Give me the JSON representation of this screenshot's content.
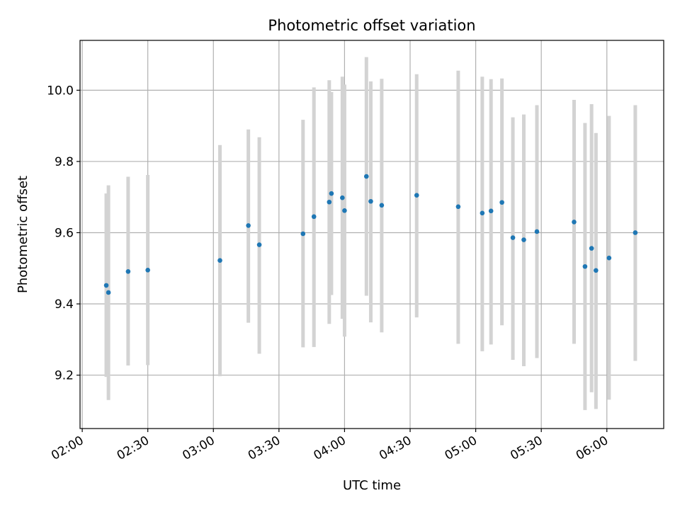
{
  "chart_data": {
    "type": "scatter",
    "title": "Photometric offset variation",
    "xlabel": "UTC time",
    "ylabel": "Photometric offset",
    "x_ticks": [
      "02:00",
      "02:30",
      "03:00",
      "03:30",
      "04:00",
      "04:30",
      "05:00",
      "05:30",
      "06:00"
    ],
    "y_ticks": [
      "9.2",
      "9.4",
      "9.6",
      "9.8",
      "10.0"
    ],
    "xlim": [
      "01:59",
      "06:26"
    ],
    "ylim": [
      9.05,
      10.14
    ],
    "grid": true,
    "colors": {
      "points": "#1f77b4",
      "errorbars": "#d3d3d3",
      "grid": "#b0b0b0"
    },
    "points": [
      {
        "x": "02:11",
        "y": 9.452,
        "lo": 9.195,
        "hi": 9.71
      },
      {
        "x": "02:12",
        "y": 9.432,
        "lo": 9.13,
        "hi": 9.733
      },
      {
        "x": "02:21",
        "y": 9.491,
        "lo": 9.227,
        "hi": 9.757
      },
      {
        "x": "02:30",
        "y": 9.495,
        "lo": 9.228,
        "hi": 9.762
      },
      {
        "x": "03:03",
        "y": 9.522,
        "lo": 9.197,
        "hi": 9.846
      },
      {
        "x": "03:16",
        "y": 9.62,
        "lo": 9.347,
        "hi": 9.89
      },
      {
        "x": "03:21",
        "y": 9.566,
        "lo": 9.26,
        "hi": 9.868
      },
      {
        "x": "03:41",
        "y": 9.597,
        "lo": 9.278,
        "hi": 9.917
      },
      {
        "x": "03:46",
        "y": 9.645,
        "lo": 9.279,
        "hi": 10.008
      },
      {
        "x": "03:53",
        "y": 9.686,
        "lo": 9.344,
        "hi": 10.028
      },
      {
        "x": "03:54",
        "y": 9.71,
        "lo": 9.425,
        "hi": 9.995
      },
      {
        "x": "03:59",
        "y": 9.698,
        "lo": 9.358,
        "hi": 10.038
      },
      {
        "x": "04:00",
        "y": 9.662,
        "lo": 9.308,
        "hi": 10.016
      },
      {
        "x": "04:10",
        "y": 9.758,
        "lo": 9.423,
        "hi": 10.093
      },
      {
        "x": "04:12",
        "y": 9.688,
        "lo": 9.348,
        "hi": 10.025
      },
      {
        "x": "04:17",
        "y": 9.677,
        "lo": 9.32,
        "hi": 10.032
      },
      {
        "x": "04:33",
        "y": 9.705,
        "lo": 9.362,
        "hi": 10.045
      },
      {
        "x": "04:52",
        "y": 9.673,
        "lo": 9.288,
        "hi": 10.055
      },
      {
        "x": "05:03",
        "y": 9.655,
        "lo": 9.267,
        "hi": 10.038
      },
      {
        "x": "05:07",
        "y": 9.661,
        "lo": 9.286,
        "hi": 10.031
      },
      {
        "x": "05:12",
        "y": 9.685,
        "lo": 9.34,
        "hi": 10.033
      },
      {
        "x": "05:17",
        "y": 9.586,
        "lo": 9.243,
        "hi": 9.924
      },
      {
        "x": "05:22",
        "y": 9.58,
        "lo": 9.225,
        "hi": 9.932
      },
      {
        "x": "05:28",
        "y": 9.603,
        "lo": 9.248,
        "hi": 9.958
      },
      {
        "x": "05:45",
        "y": 9.63,
        "lo": 9.288,
        "hi": 9.973
      },
      {
        "x": "05:50",
        "y": 9.505,
        "lo": 9.102,
        "hi": 9.908
      },
      {
        "x": "05:53",
        "y": 9.556,
        "lo": 9.152,
        "hi": 9.961
      },
      {
        "x": "05:55",
        "y": 9.494,
        "lo": 9.105,
        "hi": 9.88
      },
      {
        "x": "06:01",
        "y": 9.529,
        "lo": 9.131,
        "hi": 9.928
      },
      {
        "x": "06:13",
        "y": 9.6,
        "lo": 9.24,
        "hi": 9.958
      }
    ]
  }
}
